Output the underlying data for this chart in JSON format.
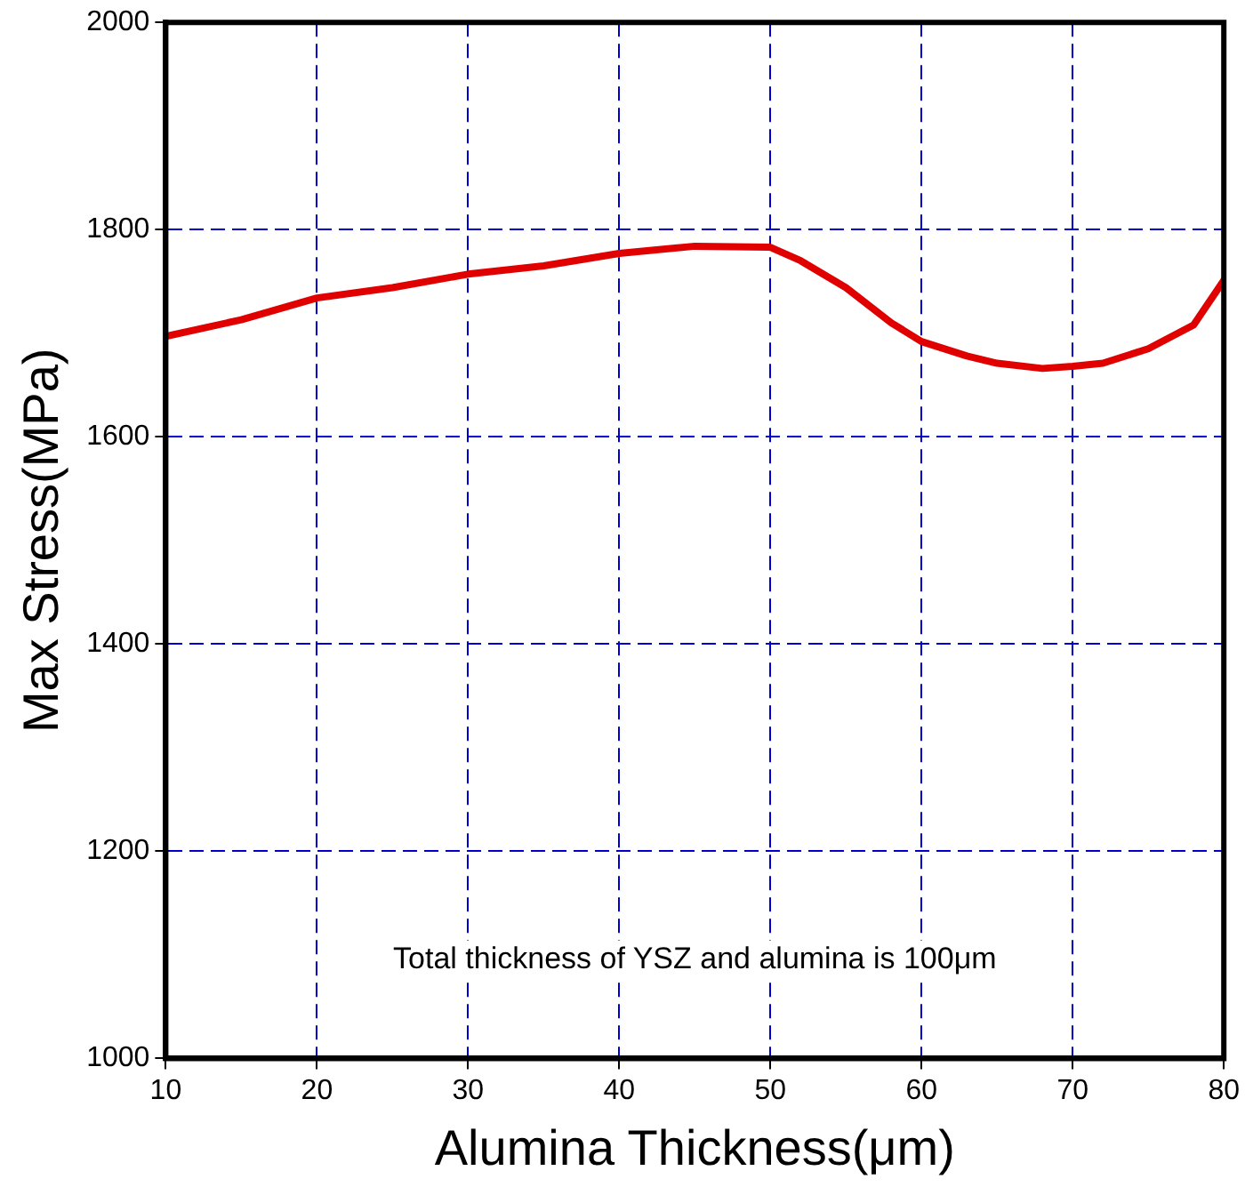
{
  "chart_data": {
    "type": "line",
    "xlabel": "Alumina Thickness(μm)",
    "ylabel": "Max Stress(MPa)",
    "x": [
      10,
      15,
      20,
      25,
      30,
      35,
      40,
      45,
      50,
      52,
      55,
      58,
      60,
      63,
      65,
      68,
      70,
      72,
      75,
      78,
      80
    ],
    "series": [
      {
        "color": "#e00000",
        "values": [
          1697,
          1713,
          1734,
          1744,
          1757,
          1765,
          1777,
          1784,
          1783,
          1770,
          1744,
          1710,
          1692,
          1678,
          1671,
          1666,
          1668,
          1671,
          1685,
          1708,
          1751
        ]
      }
    ],
    "xlim": [
      10,
      80
    ],
    "xticks": [
      10,
      20,
      30,
      40,
      50,
      60,
      70,
      80
    ],
    "ylim": [
      1000,
      2000
    ],
    "yticks": [
      1000,
      1200,
      1400,
      1600,
      1800,
      2000
    ],
    "grid": true,
    "legend": false,
    "marker": "none",
    "line_style": "solid",
    "annotations": [
      "Total thickness of YSZ and alumina is 100μm"
    ]
  }
}
